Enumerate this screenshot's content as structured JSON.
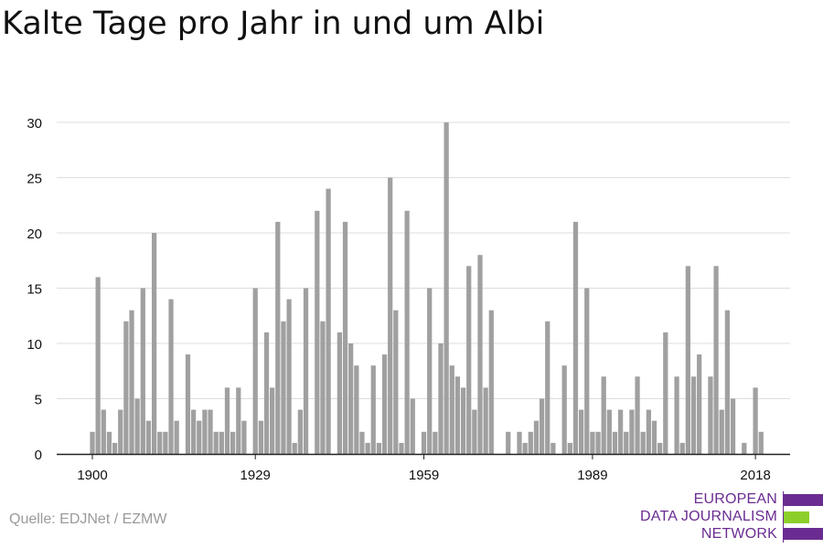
{
  "title": "Kalte Tage pro Jahr in und um Albi",
  "source": "Quelle: EDJNet / EZMW",
  "logo": {
    "lines": [
      "EUROPEAN",
      "DATA JOURNALISM",
      "NETWORK"
    ],
    "colors": {
      "purple": "#6a2c91",
      "green": "#8ccf2b"
    }
  },
  "colors": {
    "bar": "#a0a0a0",
    "grid": "#dddddd",
    "axis": "#222222",
    "text": "#111111"
  },
  "chart_data": {
    "type": "bar",
    "title": "Kalte Tage pro Jahr in und um Albi",
    "xlabel": "",
    "ylabel": "",
    "x": [
      1900,
      1901,
      1902,
      1903,
      1904,
      1905,
      1906,
      1907,
      1908,
      1909,
      1910,
      1911,
      1912,
      1913,
      1914,
      1915,
      1916,
      1917,
      1918,
      1919,
      1920,
      1921,
      1922,
      1923,
      1924,
      1925,
      1926,
      1927,
      1928,
      1929,
      1930,
      1931,
      1932,
      1933,
      1934,
      1935,
      1936,
      1937,
      1938,
      1939,
      1940,
      1941,
      1942,
      1943,
      1944,
      1945,
      1946,
      1947,
      1948,
      1949,
      1950,
      1951,
      1952,
      1953,
      1954,
      1955,
      1956,
      1957,
      1958,
      1959,
      1960,
      1961,
      1962,
      1963,
      1964,
      1965,
      1966,
      1967,
      1968,
      1969,
      1970,
      1971,
      1972,
      1973,
      1974,
      1975,
      1976,
      1977,
      1978,
      1979,
      1980,
      1981,
      1982,
      1983,
      1984,
      1985,
      1986,
      1987,
      1988,
      1989,
      1990,
      1991,
      1992,
      1993,
      1994,
      1995,
      1996,
      1997,
      1998,
      1999,
      2000,
      2001,
      2002,
      2003,
      2004,
      2005,
      2006,
      2007,
      2008,
      2009,
      2010,
      2011,
      2012,
      2013,
      2014,
      2015,
      2016,
      2017,
      2018,
      2019
    ],
    "values": [
      2,
      16,
      4,
      2,
      1,
      4,
      12,
      13,
      5,
      15,
      3,
      20,
      2,
      2,
      14,
      3,
      0,
      9,
      4,
      3,
      4,
      4,
      2,
      2,
      6,
      2,
      6,
      3,
      0,
      15,
      3,
      11,
      6,
      21,
      12,
      14,
      1,
      4,
      15,
      0,
      22,
      12,
      24,
      0,
      11,
      21,
      10,
      8,
      2,
      1,
      8,
      1,
      9,
      25,
      13,
      1,
      22,
      5,
      0,
      2,
      15,
      2,
      10,
      30,
      8,
      7,
      6,
      17,
      4,
      18,
      6,
      13,
      0,
      0,
      2,
      0,
      2,
      1,
      2,
      3,
      5,
      12,
      1,
      0,
      8,
      1,
      21,
      4,
      15,
      2,
      2,
      7,
      4,
      2,
      4,
      2,
      4,
      7,
      2,
      4,
      3,
      1,
      11,
      0,
      7,
      1,
      17,
      7,
      9,
      0,
      7,
      17,
      4,
      13,
      5,
      0,
      1,
      0,
      6,
      2
    ],
    "ylim": [
      0,
      30
    ],
    "yticks": [
      0,
      5,
      10,
      15,
      20,
      25,
      30
    ],
    "xticks": [
      1900,
      1929,
      1959,
      1989,
      2018
    ],
    "grid": true,
    "legend": "none"
  }
}
